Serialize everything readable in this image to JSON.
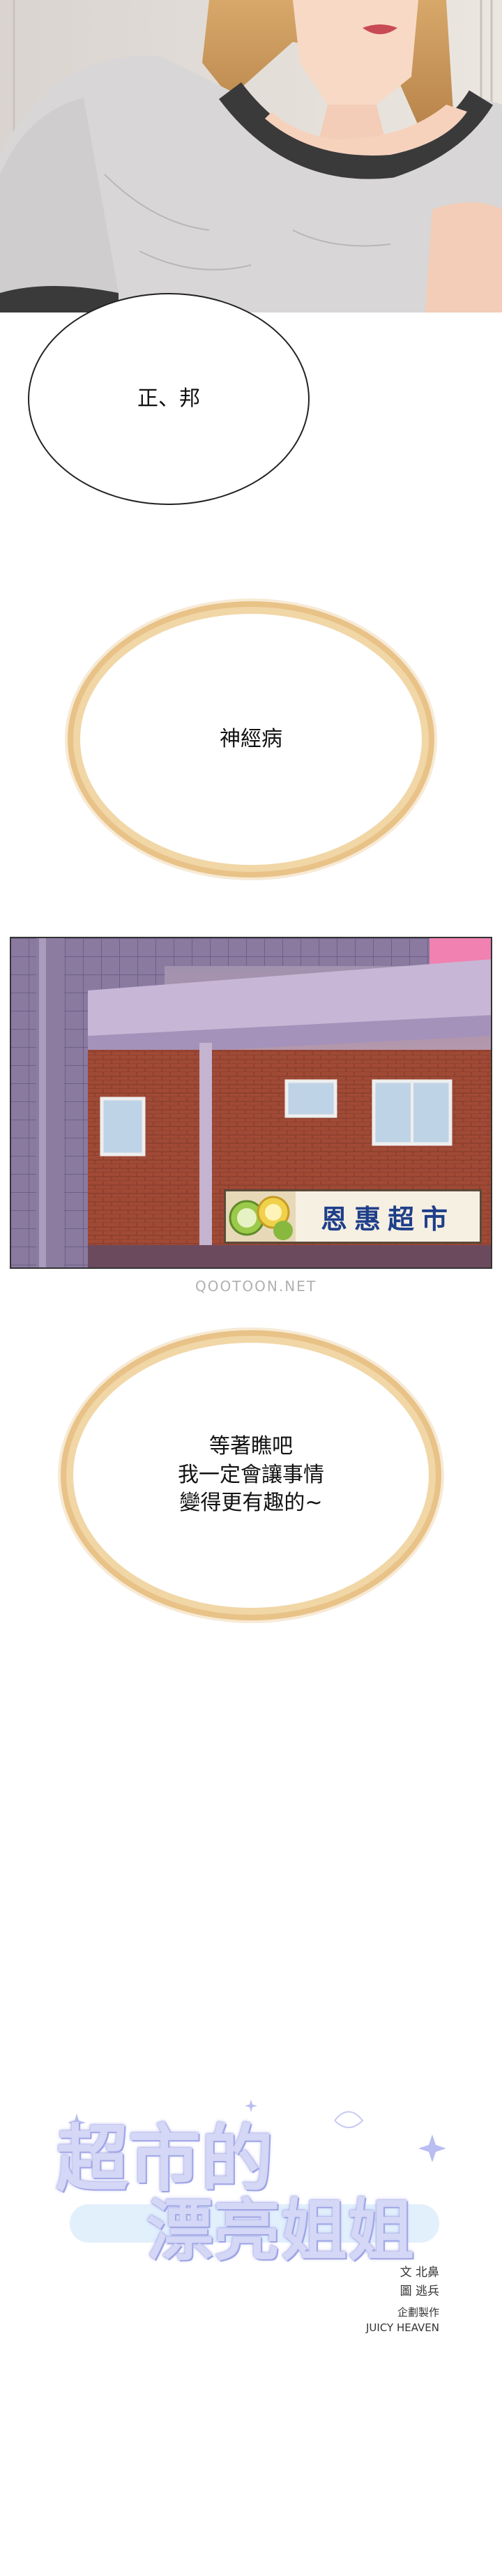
{
  "bubbles": {
    "first": "正、邦",
    "second": "神經病",
    "third": "等著瞧吧\n我一定會讓事情\n變得更有趣的~"
  },
  "store_sign": {
    "text": "恩惠超市"
  },
  "watermark": "QOOTOON.NET",
  "title": {
    "line1": "超市的",
    "line2": "漂亮姐姐"
  },
  "credits": {
    "writer": "文 北鼻",
    "artist": "圖 逃兵",
    "production_label": "企劃製作",
    "studio": "JUICY HEAVEN"
  },
  "colors": {
    "bubble_glow": "#e8c287",
    "sign_text": "#1f3f8a",
    "title_fill": "#d4d7f5",
    "shirt_trim": "#3a3a3a",
    "brick": "#a04a36"
  }
}
